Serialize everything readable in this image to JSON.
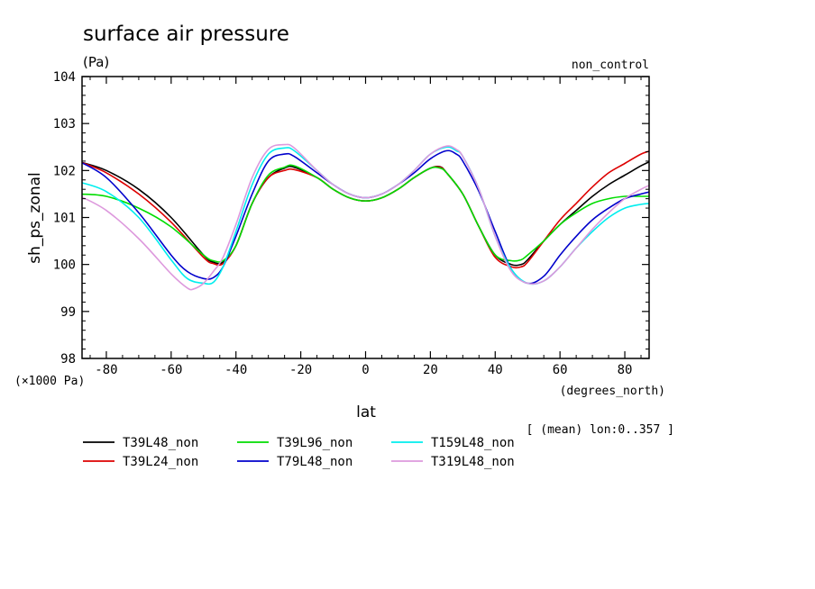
{
  "chart_data": {
    "type": "line",
    "title": "surface air pressure",
    "units": "(Pa)",
    "experiment": "non_control",
    "ylabel": "sh_ps_zonal",
    "xlabel": "lat",
    "x_units": "(degrees_north)",
    "y_scale_note": "(×1000 Pa)",
    "subset_note": "[ (mean) lon:0..357 ]",
    "xlim": [
      -87.5,
      87.5
    ],
    "ylim": [
      98,
      104
    ],
    "x_ticks": [
      -80,
      -60,
      -40,
      -20,
      0,
      20,
      40,
      60,
      80
    ],
    "y_ticks": [
      98,
      99,
      100,
      101,
      102,
      103,
      104
    ],
    "x_tick_labels": [
      "-80",
      "-60",
      "-40",
      "-20",
      "0",
      "20",
      "40",
      "60",
      "80"
    ],
    "y_tick_labels": [
      "98",
      "99",
      "100",
      "101",
      "102",
      "103",
      "104"
    ],
    "series": [
      {
        "name": "T39L48_non",
        "color": "#000000",
        "x": [
          -88,
          -80,
          -70,
          -60,
          -50,
          -47,
          -44,
          -40,
          -35,
          -30,
          -25,
          -22,
          -15,
          -10,
          -5,
          0,
          5,
          10,
          15,
          20,
          23,
          25,
          30,
          35,
          40,
          45,
          48,
          50,
          55,
          60,
          65,
          70,
          75,
          80,
          85,
          88
        ],
        "y": [
          102.18,
          102.0,
          101.6,
          101.0,
          100.2,
          100.05,
          100.05,
          100.4,
          101.3,
          101.85,
          102.05,
          102.07,
          101.85,
          101.6,
          101.42,
          101.35,
          101.42,
          101.6,
          101.85,
          102.05,
          102.08,
          101.95,
          101.5,
          100.8,
          100.2,
          100.0,
          100.0,
          100.1,
          100.5,
          100.85,
          101.15,
          101.45,
          101.7,
          101.9,
          102.1,
          102.2
        ]
      },
      {
        "name": "T39L24_non",
        "color": "#dd0000",
        "x": [
          -88,
          -80,
          -70,
          -60,
          -50,
          -47,
          -44,
          -40,
          -35,
          -30,
          -25,
          -22,
          -15,
          -10,
          -5,
          0,
          5,
          10,
          15,
          20,
          23,
          25,
          30,
          35,
          40,
          45,
          48,
          50,
          55,
          60,
          65,
          70,
          75,
          80,
          85,
          88
        ],
        "y": [
          102.18,
          101.95,
          101.5,
          100.9,
          100.15,
          100.02,
          100.02,
          100.4,
          101.3,
          101.85,
          102.0,
          102.02,
          101.85,
          101.6,
          101.42,
          101.35,
          101.42,
          101.6,
          101.85,
          102.05,
          102.07,
          101.95,
          101.5,
          100.8,
          100.15,
          99.95,
          99.95,
          100.05,
          100.5,
          100.95,
          101.3,
          101.65,
          101.95,
          102.15,
          102.35,
          102.42
        ]
      },
      {
        "name": "T39L96_non",
        "color": "#00dd00",
        "x": [
          -88,
          -80,
          -70,
          -60,
          -50,
          -47,
          -44,
          -40,
          -35,
          -30,
          -25,
          -22,
          -15,
          -10,
          -5,
          0,
          5,
          10,
          15,
          20,
          23,
          25,
          30,
          35,
          40,
          45,
          48,
          50,
          55,
          60,
          65,
          70,
          75,
          80,
          85,
          88
        ],
        "y": [
          101.5,
          101.45,
          101.2,
          100.8,
          100.2,
          100.08,
          100.08,
          100.4,
          101.3,
          101.9,
          102.07,
          102.1,
          101.85,
          101.6,
          101.42,
          101.35,
          101.42,
          101.6,
          101.85,
          102.05,
          102.05,
          101.95,
          101.5,
          100.8,
          100.2,
          100.08,
          100.1,
          100.2,
          100.5,
          100.85,
          101.1,
          101.3,
          101.4,
          101.45,
          101.45,
          101.45
        ]
      },
      {
        "name": "T79L48_non",
        "color": "#0000cc",
        "x": [
          -88,
          -80,
          -70,
          -60,
          -55,
          -50,
          -47,
          -44,
          -40,
          -35,
          -30,
          -25,
          -22,
          -15,
          -10,
          -5,
          0,
          5,
          10,
          15,
          20,
          25,
          28,
          30,
          35,
          40,
          45,
          50,
          55,
          60,
          65,
          70,
          75,
          80,
          85,
          88
        ],
        "y": [
          102.18,
          101.85,
          101.1,
          100.2,
          99.85,
          99.7,
          99.72,
          99.95,
          100.6,
          101.5,
          102.2,
          102.35,
          102.3,
          101.95,
          101.7,
          101.5,
          101.42,
          101.5,
          101.7,
          101.95,
          102.25,
          102.42,
          102.35,
          102.2,
          101.55,
          100.7,
          99.9,
          99.6,
          99.75,
          100.2,
          100.6,
          100.95,
          101.2,
          101.4,
          101.5,
          101.55
        ]
      },
      {
        "name": "T159L48_non",
        "color": "#00eeee",
        "x": [
          -88,
          -80,
          -70,
          -60,
          -55,
          -50,
          -47,
          -44,
          -40,
          -35,
          -30,
          -25,
          -22,
          -15,
          -10,
          -5,
          0,
          5,
          10,
          15,
          20,
          25,
          28,
          30,
          35,
          40,
          45,
          50,
          55,
          60,
          65,
          70,
          75,
          80,
          85,
          88
        ],
        "y": [
          101.75,
          101.55,
          101.0,
          100.1,
          99.7,
          99.6,
          99.62,
          99.95,
          100.7,
          101.7,
          102.35,
          102.48,
          102.42,
          102.0,
          101.7,
          101.5,
          101.42,
          101.5,
          101.7,
          102.0,
          102.35,
          102.5,
          102.42,
          102.3,
          101.6,
          100.6,
          99.9,
          99.6,
          99.65,
          99.95,
          100.35,
          100.7,
          101.0,
          101.2,
          101.28,
          101.3
        ]
      },
      {
        "name": "T319L48_non",
        "color": "#dd99dd",
        "x": [
          -88,
          -80,
          -70,
          -60,
          -55,
          -53,
          -50,
          -47,
          -44,
          -40,
          -35,
          -30,
          -25,
          -22,
          -15,
          -10,
          -5,
          0,
          5,
          10,
          15,
          20,
          25,
          28,
          30,
          35,
          40,
          45,
          50,
          55,
          60,
          65,
          70,
          75,
          80,
          85,
          88
        ],
        "y": [
          101.45,
          101.15,
          100.55,
          99.8,
          99.5,
          99.48,
          99.6,
          99.85,
          100.15,
          100.85,
          101.85,
          102.45,
          102.55,
          102.48,
          102.0,
          101.7,
          101.5,
          101.42,
          101.5,
          101.7,
          102.0,
          102.35,
          102.52,
          102.45,
          102.3,
          101.6,
          100.6,
          99.85,
          99.6,
          99.65,
          99.95,
          100.35,
          100.75,
          101.1,
          101.4,
          101.6,
          101.7
        ]
      }
    ],
    "legend_position": "bottom"
  }
}
